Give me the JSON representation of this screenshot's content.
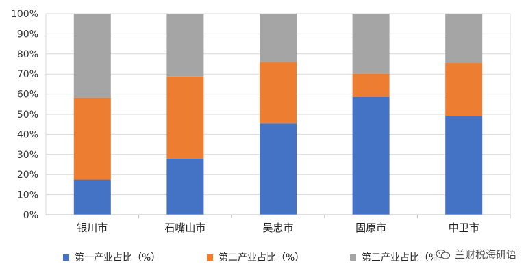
{
  "chart_data": {
    "type": "bar",
    "stacked": true,
    "categories": [
      "银川市",
      "石嘴山市",
      "吴忠市",
      "固原市",
      "中卫市"
    ],
    "series": [
      {
        "name": "第一产业占比（%）",
        "values": [
          17.5,
          28,
          45.5,
          58.5,
          49.3
        ],
        "color": "#4472C4"
      },
      {
        "name": "第二产业占比（%）",
        "values": [
          40.8,
          40.8,
          30.5,
          11.7,
          26.2
        ],
        "color": "#ED7D31"
      },
      {
        "name": "第三产业占比（%）",
        "values": [
          41.7,
          31.2,
          24,
          29.8,
          24.5
        ],
        "color": "#A5A5A5"
      }
    ],
    "ylim": [
      0,
      100
    ],
    "yticks": [
      "0%",
      "10%",
      "20%",
      "30%",
      "40%",
      "50%",
      "60%",
      "70%",
      "80%",
      "90%",
      "100%"
    ],
    "grid": true,
    "legend_position": "bottom"
  },
  "watermark": {
    "text": "兰财税海研语",
    "icon": "wechat-icon"
  }
}
